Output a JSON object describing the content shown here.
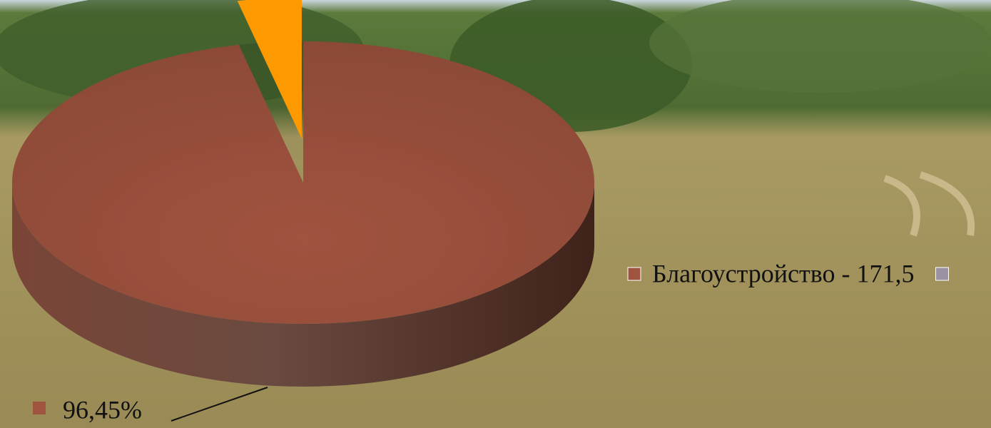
{
  "chart_data": {
    "type": "pie",
    "categories": [
      "Благоустройство - 171,5",
      null
    ],
    "values": [
      96.45,
      3.55
    ],
    "value_labels": [
      "96,45%",
      null
    ],
    "colors": [
      "#a0533f",
      "#ff9900"
    ],
    "legend": "right"
  }
}
